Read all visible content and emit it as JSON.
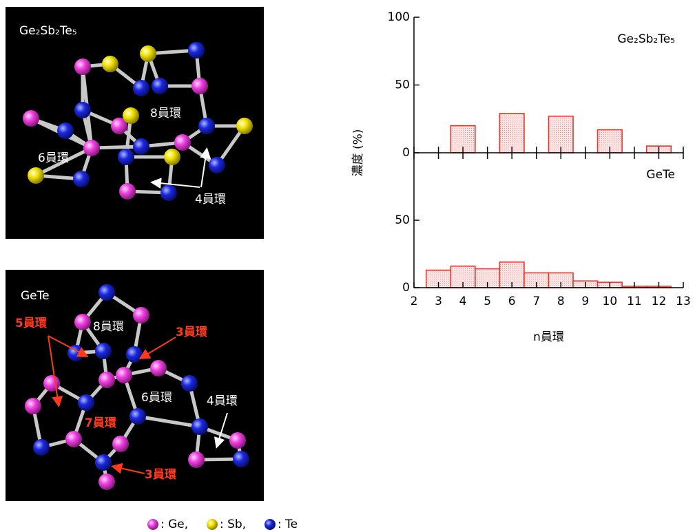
{
  "structures": [
    {
      "title": "Ge₂Sb₂Te₅",
      "rings": [
        "8員環",
        "6員環",
        "4員環"
      ]
    },
    {
      "title": "GeTe",
      "rings": [
        "5員環",
        "8員環",
        "3員環",
        "6員環",
        "4員環",
        "7員環",
        "3員環"
      ]
    }
  ],
  "legend": [
    ": Ge,",
    ": Sb,",
    ": Te"
  ],
  "chart_data": [
    {
      "type": "histogram",
      "title": "Ge₂Sb₂Te₅",
      "ylabel": "濃度 (%)",
      "bins": [
        2.5,
        3.5,
        4.5,
        5.5,
        6.5,
        7.5,
        8.5,
        9.5,
        10.5,
        11.5,
        12.5
      ],
      "values": [
        0,
        20,
        0,
        29,
        0,
        27,
        0,
        17,
        0,
        5
      ],
      "color": "#e8392c",
      "xlim": [
        2,
        13
      ],
      "ylim": [
        0,
        100
      ],
      "yticks": [
        0,
        50,
        100
      ]
    },
    {
      "type": "histogram",
      "title": "GeTe",
      "xlabel": "n員環",
      "bins": [
        2.5,
        3.5,
        4.5,
        5.5,
        6.5,
        7.5,
        8.5,
        9.5,
        10.5,
        11.5,
        12.5
      ],
      "values": [
        13,
        16,
        14,
        19,
        11,
        11,
        5,
        4,
        1,
        1
      ],
      "color": "#e8392c",
      "xlim": [
        2,
        13
      ],
      "ylim": [
        0,
        100
      ],
      "yticks": [
        0,
        50
      ],
      "xticks": [
        2,
        3,
        4,
        5,
        6,
        7,
        8,
        9,
        10,
        11,
        12,
        13
      ]
    }
  ]
}
